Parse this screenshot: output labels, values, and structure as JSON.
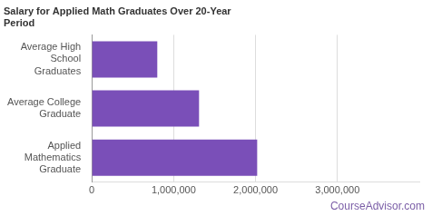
{
  "chart_data": {
    "type": "bar",
    "orientation": "horizontal",
    "title": "Salary for Applied Math Graduates Over 20-Year Period",
    "categories": [
      "Average High School Graduates",
      "Average College Graduate",
      "Applied Mathematics Graduate"
    ],
    "values": [
      800000,
      1310000,
      2020000
    ],
    "color": "#7a4fb8",
    "xlim": [
      0,
      4000000
    ],
    "xticks": [
      0,
      {
        "value": 1000000,
        "label": "1,000,000"
      },
      {
        "value": 2000000,
        "label": "2,000,000"
      },
      {
        "value": 3000000,
        "label": "3,000,000"
      }
    ],
    "grid": true,
    "watermark": "CourseAdvisor.com"
  }
}
